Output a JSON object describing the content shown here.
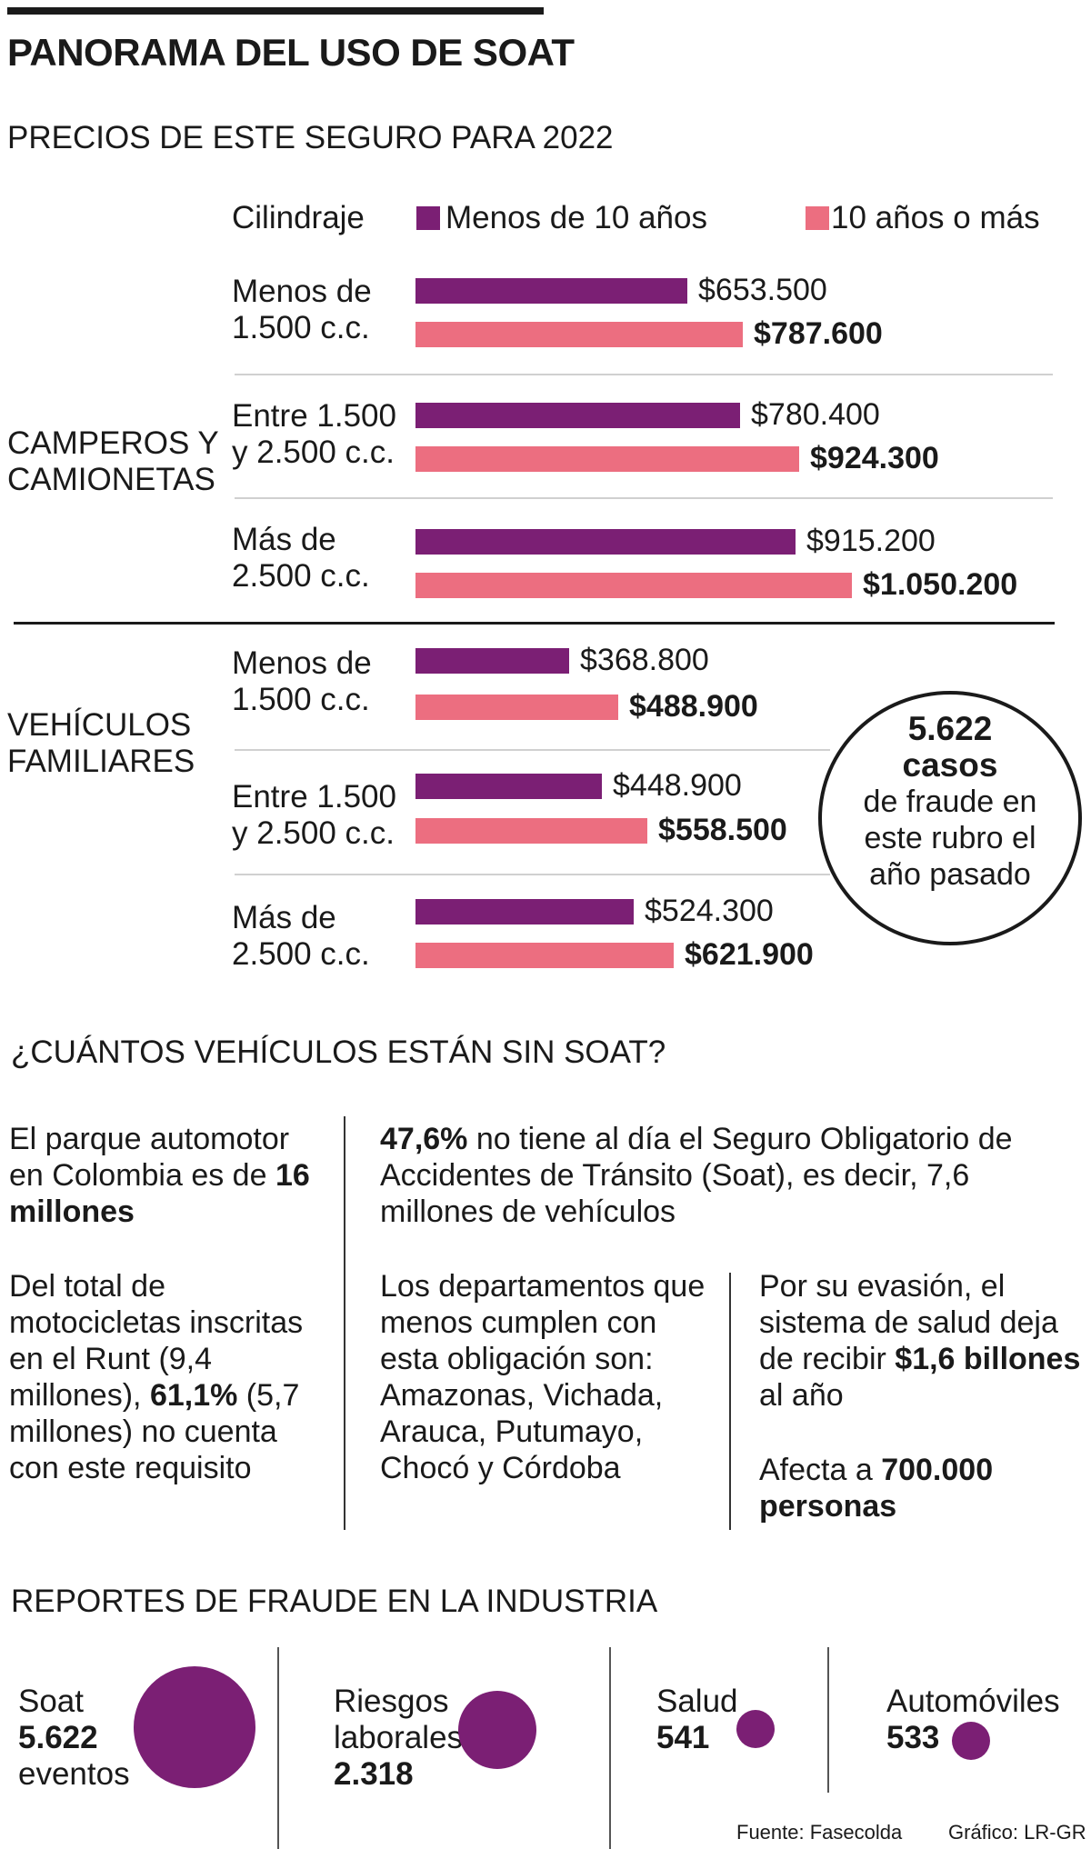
{
  "header": {
    "title": "PANORAMA DEL USO DE SOAT",
    "subtitle": "PRECIOS DE ESTE SEGURO PARA 2022"
  },
  "colors": {
    "purple": "#7b1f74",
    "pink": "#ec6e80"
  },
  "chart_data": {
    "type": "bar",
    "orientation": "horizontal",
    "column_label": "Cilindraje",
    "legend_placement": "top",
    "series": [
      {
        "name": "Menos de 10 años",
        "color": "#7b1f74"
      },
      {
        "name": "10 años o más",
        "color": "#ec6e80"
      }
    ],
    "groups": [
      {
        "name": "CAMPEROS Y CAMIONETAS",
        "name_lines": [
          "CAMPEROS Y",
          "CAMIONETAS"
        ],
        "rows": [
          {
            "category_lines": [
              "Menos de",
              "1.500 c.c."
            ],
            "values": [
              653500,
              787600
            ],
            "labels": [
              "$653.500",
              "$787.600"
            ]
          },
          {
            "category_lines": [
              "Entre 1.500",
              "y 2.500 c.c."
            ],
            "values": [
              780400,
              924300
            ],
            "labels": [
              "$780.400",
              "$924.300"
            ]
          },
          {
            "category_lines": [
              "Más de",
              "2.500 c.c."
            ],
            "values": [
              915200,
              1050200
            ],
            "labels": [
              "$915.200",
              "$1.050.200"
            ]
          }
        ]
      },
      {
        "name": "VEHÍCULOS FAMILIARES",
        "name_lines": [
          "VEHÍCULOS",
          "FAMILIARES"
        ],
        "rows": [
          {
            "category_lines": [
              "Menos de",
              "1.500 c.c."
            ],
            "values": [
              368800,
              488900
            ],
            "labels": [
              "$368.800",
              "$488.900"
            ]
          },
          {
            "category_lines": [
              "Entre 1.500",
              "y 2.500 c.c."
            ],
            "values": [
              448900,
              558500
            ],
            "labels": [
              "$448.900",
              "$558.500"
            ]
          },
          {
            "category_lines": [
              "Más de",
              "2.500 c.c."
            ],
            "values": [
              524300,
              621900
            ],
            "labels": [
              "$524.300",
              "$621.900"
            ]
          }
        ]
      }
    ],
    "xlim": [
      0,
      1050200
    ]
  },
  "callout": {
    "line1": "5.622",
    "line2": "casos",
    "line3": "de fraude en",
    "line4": "este rubro el",
    "line5": "año pasado"
  },
  "section2": {
    "title": "¿CUÁNTOS VEHÍCULOS ESTÁN SIN SOAT?",
    "p1_pre": "El parque automotor en Colombia es de ",
    "p1_bold": "16 millones",
    "p2_pre": "Del total de motocicletas inscritas en el Runt (9,4 millones), ",
    "p2_bold": "61,1%",
    "p2_post": " (5,7 millones) no cuenta con este requisito",
    "p3_bold": "47,6%",
    "p3_post": " no tiene al día el Seguro Obligatorio de Accidentes de Tránsito (Soat), es decir, 7,6 millones de vehículos",
    "p4": "Los departamentos que menos cumplen con esta obligación son: Amazonas, Vichada, Arauca, Putumayo, Chocó y Córdoba",
    "p5_pre": "Por su evasión, el sistema de salud deja de recibir ",
    "p5_bold": "$1,6 billones",
    "p5_post": " al año",
    "p6_pre": "Afecta a ",
    "p6_bold": "700.000 personas"
  },
  "section3": {
    "title": "REPORTES DE FRAUDE EN LA INDUSTRIA",
    "items": [
      {
        "line1": "Soat",
        "value": "5.622",
        "line3": "eventos",
        "count": 5622
      },
      {
        "line1": "Riesgos",
        "line2": "laborales",
        "value": "2.318",
        "count": 2318
      },
      {
        "line1": "Salud",
        "value": "541",
        "count": 541
      },
      {
        "line1": "Automóviles",
        "value": "533",
        "count": 533
      }
    ]
  },
  "footer": {
    "source": "Fuente: Fasecolda",
    "credit": "Gráfico: LR-GR"
  }
}
